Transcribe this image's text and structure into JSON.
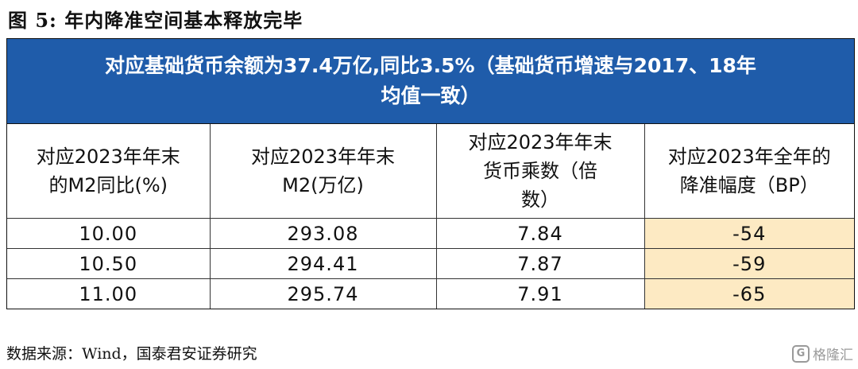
{
  "figure_title": "图 5:  年内降准空间基本释放完毕",
  "banner": {
    "line1": "对应基础货币余额为37.4万亿,同比3.5%（基础货币增速与2017、18年",
    "line2": "均值一致）"
  },
  "table": {
    "headers": [
      {
        "line1": "对应2023年年末",
        "line2": "的M2同比(%)"
      },
      {
        "line1": "对应2023年年末",
        "line2": "M2(万亿)"
      },
      {
        "line1": "对应2023年年末",
        "line2": "货币乘数（倍",
        "line3": "数）"
      },
      {
        "line1": "对应2023年全年的",
        "line2": "降准幅度（BP）"
      }
    ],
    "rows": [
      [
        "10.00",
        "293.08",
        "7.84",
        "-54"
      ],
      [
        "10.50",
        "294.41",
        "7.87",
        "-59"
      ],
      [
        "11.00",
        "295.74",
        "7.91",
        "-65"
      ]
    ],
    "highlight_color": "#FDEAC3",
    "banner_color": "#1F5CAA"
  },
  "source": "数据来源：Wind，国泰君安证券研究",
  "watermark": {
    "icon": "G",
    "text": "格隆汇"
  }
}
